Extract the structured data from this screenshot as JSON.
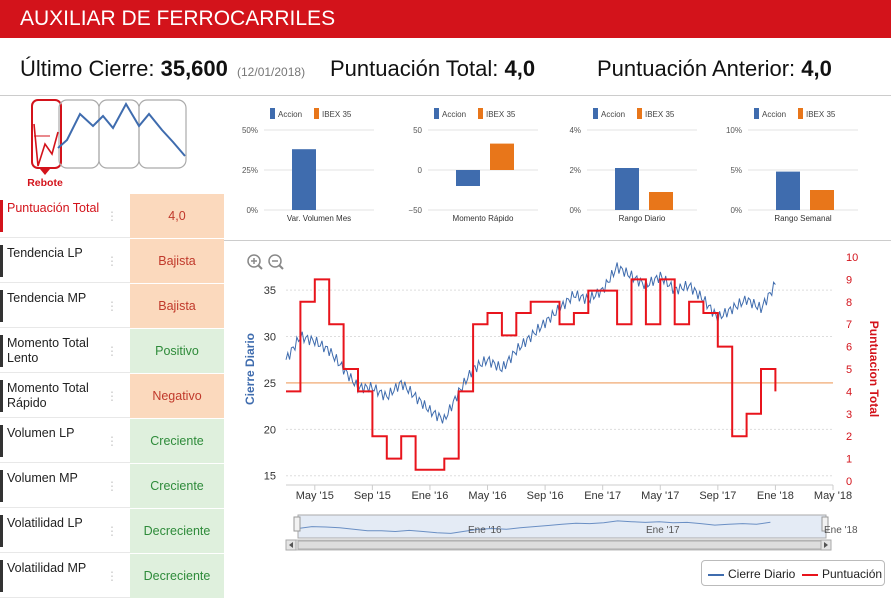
{
  "header": {
    "title": "AUXILIAR DE FERROCARRILES"
  },
  "summary": {
    "last_close_label": "Último Cierre:",
    "last_close_value": "35,600",
    "last_close_date": "(12/01/2018)",
    "total_score_label": "Puntuación Total:",
    "total_score_value": "4,0",
    "prev_score_label": "Puntuación Anterior:",
    "prev_score_value": "4,0"
  },
  "pattern": {
    "label": "Rebote"
  },
  "indicators": [
    {
      "label": "Puntuación Total",
      "value": "4,0",
      "tone": "orange",
      "highlight": true
    },
    {
      "label": "Tendencia LP",
      "value": "Bajista",
      "tone": "orange"
    },
    {
      "label": "Tendencia MP",
      "value": "Bajista",
      "tone": "orange"
    },
    {
      "label": "Momento Total Lento",
      "value": "Positivo",
      "tone": "green"
    },
    {
      "label": "Momento Total Rápido",
      "value": "Negativo",
      "tone": "orange"
    },
    {
      "label": "Volumen LP",
      "value": "Creciente",
      "tone": "green"
    },
    {
      "label": "Volumen MP",
      "value": "Creciente",
      "tone": "green"
    },
    {
      "label": "Volatilidad LP",
      "value": "Decreciente",
      "tone": "green"
    },
    {
      "label": "Volatilidad MP",
      "value": "Decreciente",
      "tone": "green"
    }
  ],
  "colors": {
    "brand": "#d3131b",
    "accion": "#3f6cae",
    "ibex": "#e8761a",
    "close_line": "#3f6cae",
    "score_line": "#e8141c"
  },
  "chart_data": [
    {
      "type": "bar",
      "title": "Var. Volumen Mes",
      "categories": [
        "Accion",
        "IBEX 35"
      ],
      "values": [
        38,
        0
      ],
      "yticks": [
        "50%",
        "25%",
        "0%"
      ],
      "ylim": [
        0,
        50
      ]
    },
    {
      "type": "bar",
      "title": "Momento Rápido",
      "categories": [
        "Accion",
        "IBEX 35"
      ],
      "values": [
        -20,
        33
      ],
      "yticks": [
        "50",
        "0",
        "−50"
      ],
      "ylim": [
        -50,
        50
      ]
    },
    {
      "type": "bar",
      "title": "Rango Diario",
      "categories": [
        "Accion",
        "IBEX 35"
      ],
      "values": [
        2.1,
        0.9
      ],
      "yticks": [
        "4%",
        "2%",
        "0%"
      ],
      "ylim": [
        0,
        4
      ]
    },
    {
      "type": "bar",
      "title": "Rango Semanal",
      "categories": [
        "Accion",
        "IBEX 35"
      ],
      "values": [
        4.8,
        2.5
      ],
      "yticks": [
        "10%",
        "5%",
        "0%"
      ],
      "ylim": [
        0,
        10
      ]
    },
    {
      "type": "line",
      "x_ticks": [
        "May '15",
        "Sep '15",
        "Ene '16",
        "May '16",
        "Sep '16",
        "Ene '17",
        "May '17",
        "Sep '17",
        "Ene '18",
        "May '18"
      ],
      "y_left": {
        "label": "Cierre Diario",
        "ticks": [
          15,
          20,
          25,
          30,
          35
        ],
        "range": [
          14,
          39
        ]
      },
      "y_right": {
        "label": "Puntuacion Total",
        "ticks": [
          0,
          1,
          2,
          3,
          4,
          5,
          6,
          7,
          8,
          9,
          10
        ],
        "range": [
          0,
          10
        ]
      },
      "reference_line": 25,
      "navigator_labels": [
        "Ene '16",
        "Ene '17",
        "Ene '18"
      ],
      "series": [
        {
          "name": "Cierre Diario",
          "axis": "left",
          "x": [
            "2015-03",
            "2015-04",
            "2015-05",
            "2015-06",
            "2015-07",
            "2015-08",
            "2015-09",
            "2015-10",
            "2015-11",
            "2015-12",
            "2016-01",
            "2016-02",
            "2016-03",
            "2016-04",
            "2016-05",
            "2016-06",
            "2016-07",
            "2016-08",
            "2016-09",
            "2016-10",
            "2016-11",
            "2016-12",
            "2017-01",
            "2017-02",
            "2017-03",
            "2017-04",
            "2017-05",
            "2017-06",
            "2017-07",
            "2017-08",
            "2017-09",
            "2017-10",
            "2017-11",
            "2017-12",
            "2018-01"
          ],
          "values": [
            27.5,
            30,
            29.5,
            28.5,
            26.5,
            24.5,
            24.5,
            23.5,
            25,
            23.5,
            22,
            21,
            24,
            26.5,
            27.5,
            26.5,
            28.5,
            30,
            31.5,
            33,
            34.5,
            34,
            35,
            37.5,
            36.5,
            35.5,
            36.5,
            35,
            35.5,
            34,
            32,
            33,
            34,
            33,
            35.6
          ]
        },
        {
          "name": "Puntuación",
          "axis": "right",
          "x": [
            "2015-03",
            "2015-04",
            "2015-05",
            "2015-06",
            "2015-07",
            "2015-08",
            "2015-09",
            "2015-10",
            "2015-11",
            "2015-12",
            "2016-01",
            "2016-02",
            "2016-03",
            "2016-04",
            "2016-05",
            "2016-06",
            "2016-07",
            "2016-08",
            "2016-09",
            "2016-10",
            "2016-11",
            "2016-12",
            "2017-01",
            "2017-02",
            "2017-03",
            "2017-04",
            "2017-05",
            "2017-06",
            "2017-07",
            "2017-08",
            "2017-09",
            "2017-10",
            "2017-11",
            "2017-12",
            "2018-01"
          ],
          "values": [
            4,
            8,
            9,
            7,
            5,
            4,
            2,
            1,
            2,
            0.5,
            0.5,
            1,
            4,
            7,
            7.5,
            6.5,
            7.5,
            8,
            8,
            7,
            7.5,
            8.5,
            8.5,
            7,
            9,
            7,
            9,
            7,
            8,
            7.5,
            6,
            2,
            3,
            5,
            4
          ]
        }
      ]
    }
  ],
  "legend": {
    "items": [
      "Cierre Diario",
      "Puntuación"
    ]
  }
}
